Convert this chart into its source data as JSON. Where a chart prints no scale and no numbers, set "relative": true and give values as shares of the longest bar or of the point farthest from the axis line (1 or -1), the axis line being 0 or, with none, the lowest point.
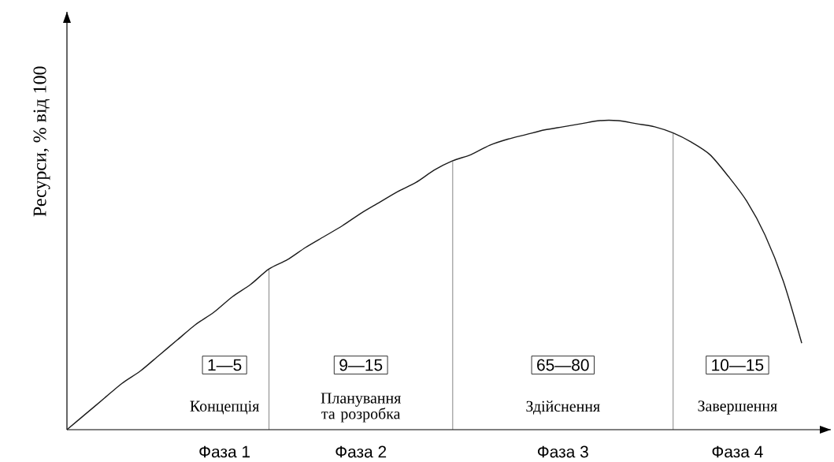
{
  "chart_data": {
    "type": "line",
    "relative": true,
    "color": "#1a1a1a",
    "marker": "none",
    "ylabel": "Ресурси, % від 100",
    "categories": [
      null,
      null,
      null,
      null,
      null,
      null,
      null,
      null,
      null,
      null,
      null,
      null,
      null,
      null,
      null,
      null,
      null,
      null,
      null,
      null,
      null,
      null,
      null,
      null,
      null,
      null,
      null,
      null,
      null,
      null,
      null,
      null,
      null,
      null,
      null,
      null,
      null,
      null,
      null,
      null,
      null
    ],
    "values": [
      0,
      0.05,
      0.1,
      0.15,
      0.19,
      0.24,
      0.29,
      0.34,
      0.38,
      0.43,
      0.47,
      0.52,
      0.55,
      0.59,
      0.625,
      0.66,
      0.7,
      0.735,
      0.77,
      0.8,
      0.84,
      0.87,
      0.89,
      0.92,
      0.94,
      0.955,
      0.97,
      0.98,
      0.99,
      1.0,
      1.0,
      0.99,
      0.98,
      0.96,
      0.93,
      0.89,
      0.82,
      0.74,
      0.63,
      0.48,
      0.28
    ],
    "annotations": [
      "1—5",
      "9—15",
      "65—80",
      "10—15",
      "Концепція",
      "Планування та розробка",
      "Здійснення",
      "Завершення",
      "Фаза 1",
      "Фаза 2",
      "Фаза 3",
      "Фаза 4"
    ]
  }
}
